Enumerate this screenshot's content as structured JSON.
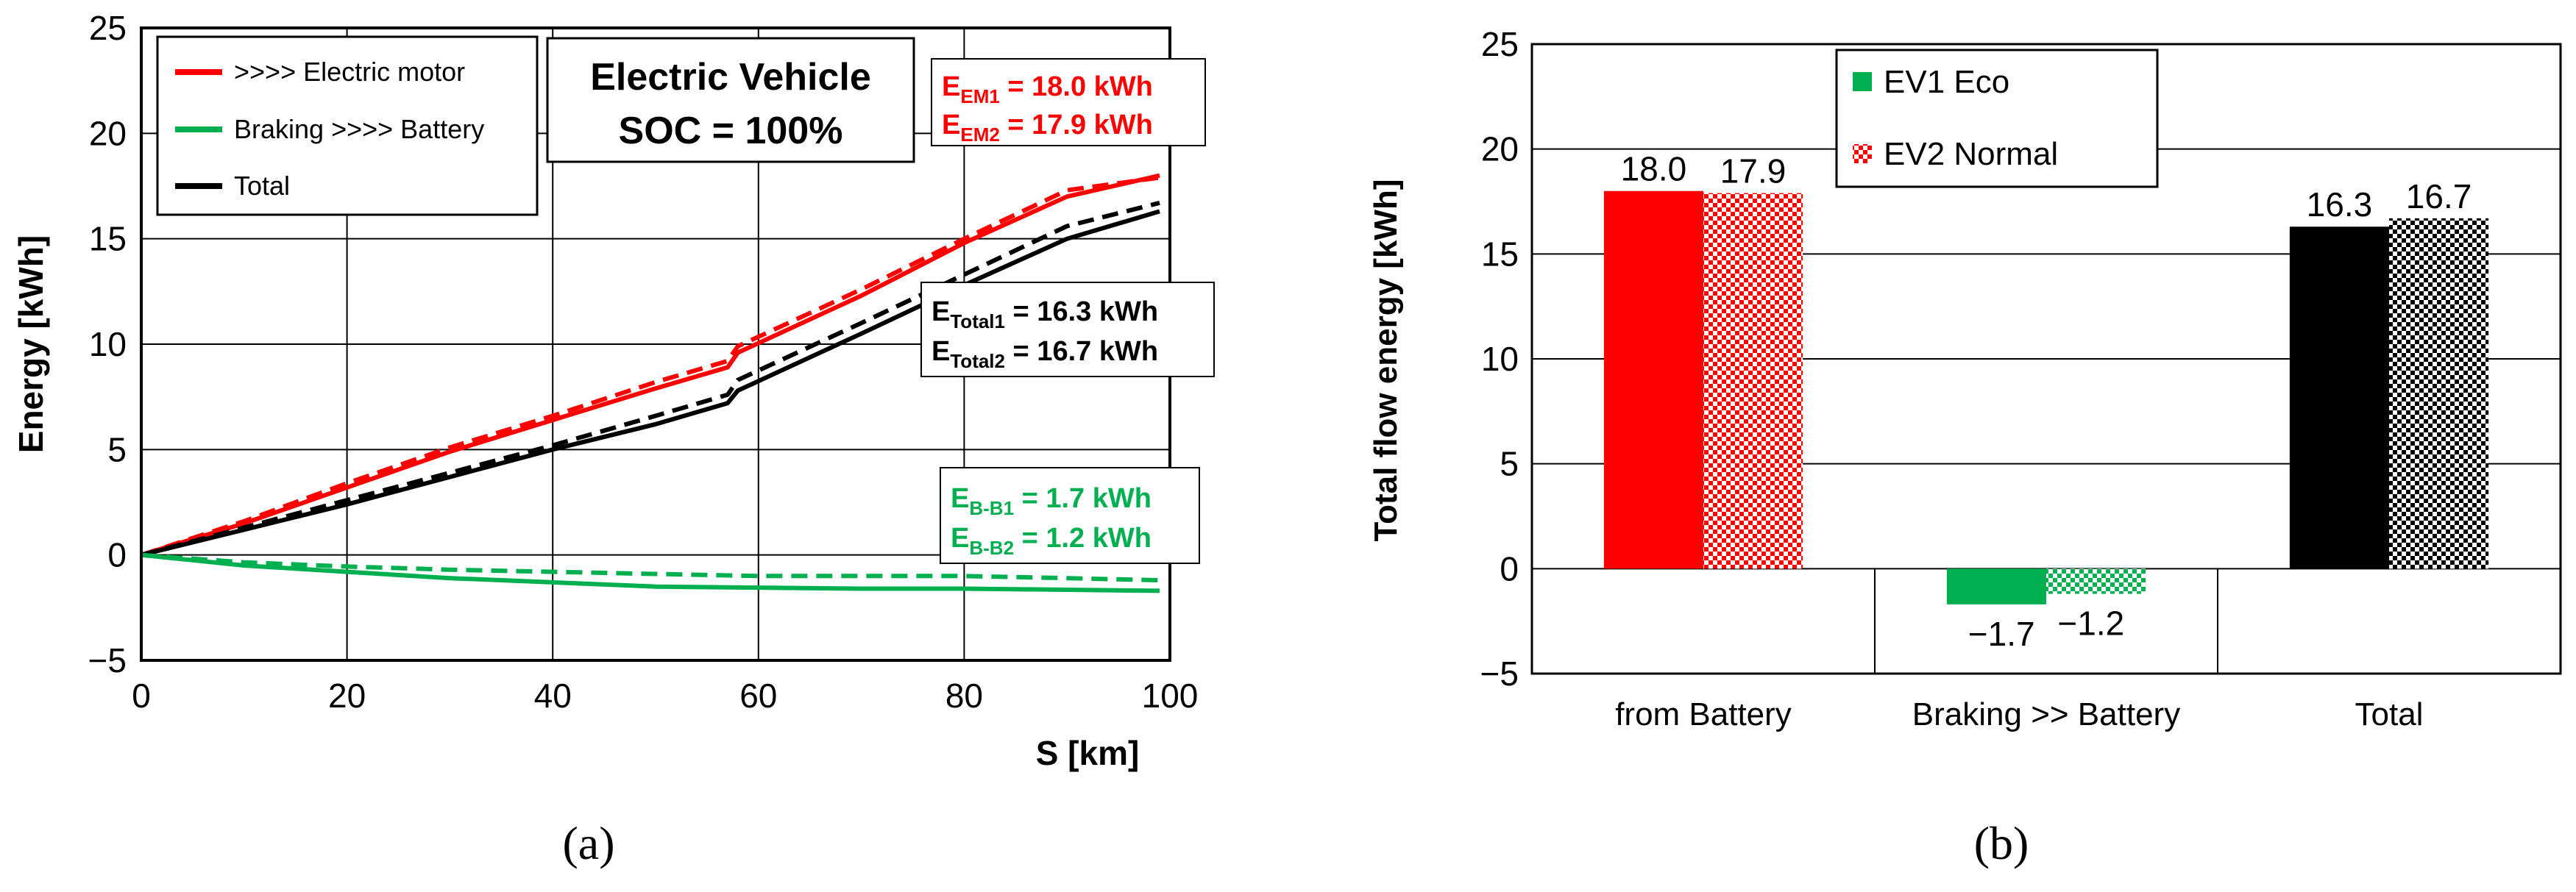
{
  "chart_data": [
    {
      "type": "line",
      "panel_label": "(a)",
      "xlabel": "S [km]",
      "ylabel": "Energy [kWh]",
      "xlim": [
        0,
        100
      ],
      "ylim": [
        -5,
        25
      ],
      "x_ticks": [
        0,
        20,
        40,
        60,
        80,
        100
      ],
      "y_ticks": [
        -5,
        0,
        5,
        10,
        15,
        20,
        25
      ],
      "grid": true,
      "title_box": {
        "line1": "Electric Vehicle",
        "line2": "SOC = 100%"
      },
      "legend": [
        {
          "label": ">>>> Electric motor",
          "color": "#ff0000"
        },
        {
          "label": "Braking >>>> Battery",
          "color": "#00b050"
        },
        {
          "label": "Total",
          "color": "#000000"
        }
      ],
      "series": [
        {
          "name": "EM1 (Eco)",
          "color": "#ff0000",
          "dash": false,
          "x": [
            0,
            10,
            20,
            30,
            40,
            50,
            57,
            58,
            70,
            80,
            90,
            99
          ],
          "y": [
            0,
            1.5,
            3.2,
            4.9,
            6.4,
            7.9,
            8.9,
            9.6,
            12.3,
            14.8,
            17.0,
            18.0
          ]
        },
        {
          "name": "EM2 (Normal)",
          "color": "#ff0000",
          "dash": true,
          "x": [
            0,
            10,
            20,
            30,
            40,
            50,
            57,
            58,
            70,
            80,
            90,
            99
          ],
          "y": [
            0,
            1.6,
            3.4,
            5.1,
            6.6,
            8.2,
            9.2,
            9.9,
            12.6,
            15.0,
            17.3,
            17.9
          ]
        },
        {
          "name": "Total1 (Eco)",
          "color": "#000000",
          "dash": false,
          "x": [
            0,
            10,
            20,
            30,
            40,
            50,
            57,
            58,
            70,
            80,
            90,
            99
          ],
          "y": [
            0,
            1.2,
            2.4,
            3.7,
            5.0,
            6.2,
            7.2,
            7.8,
            10.5,
            12.8,
            15.0,
            16.3
          ]
        },
        {
          "name": "Total2 (Normal)",
          "color": "#000000",
          "dash": true,
          "x": [
            0,
            10,
            20,
            30,
            40,
            50,
            57,
            58,
            70,
            80,
            90,
            99
          ],
          "y": [
            0,
            1.3,
            2.6,
            3.9,
            5.2,
            6.6,
            7.6,
            8.3,
            11.0,
            13.3,
            15.6,
            16.7
          ]
        },
        {
          "name": "B-B1 (Eco)",
          "color": "#00b050",
          "dash": false,
          "x": [
            0,
            10,
            20,
            30,
            40,
            50,
            60,
            70,
            80,
            90,
            99
          ],
          "y": [
            0,
            -0.5,
            -0.8,
            -1.1,
            -1.3,
            -1.5,
            -1.55,
            -1.6,
            -1.6,
            -1.65,
            -1.7
          ]
        },
        {
          "name": "B-B2 (Normal)",
          "color": "#00b050",
          "dash": true,
          "x": [
            0,
            10,
            20,
            30,
            40,
            50,
            60,
            70,
            80,
            90,
            99
          ],
          "y": [
            0,
            -0.35,
            -0.55,
            -0.7,
            -0.8,
            -0.9,
            -1.0,
            -1.0,
            -1.0,
            -1.1,
            -1.2
          ]
        }
      ],
      "annotations": {
        "em": {
          "color": "#ff0000",
          "line1": {
            "main": "E",
            "sub": "EM1",
            "rest": " = 18.0 kWh"
          },
          "line2": {
            "main": "E",
            "sub": "EM2",
            "rest": " = 17.9 kWh"
          }
        },
        "total": {
          "color": "#000000",
          "line1": {
            "main": "E",
            "sub": "Total1",
            "rest": " = 16.3 kWh"
          },
          "line2": {
            "main": "E",
            "sub": "Total2",
            "rest": " = 16.7 kWh"
          }
        },
        "bb": {
          "color": "#00b050",
          "line1": {
            "main": "E",
            "sub": "B-B1",
            "rest": " = 1.7 kWh"
          },
          "line2": {
            "main": "E",
            "sub": "B-B2",
            "rest": " = 1.2 kWh"
          }
        }
      }
    },
    {
      "type": "bar",
      "panel_label": "(b)",
      "ylabel": "Total flow energy [kWh]",
      "ylim": [
        -5,
        25
      ],
      "y_ticks": [
        -5,
        0,
        5,
        10,
        15,
        20,
        25
      ],
      "categories": [
        "from Battery",
        "Braking >> Battery",
        "Total"
      ],
      "series": [
        {
          "name": "EV1 Eco",
          "values": [
            18.0,
            -1.7,
            16.3
          ],
          "labels": [
            "18.0",
            "−1.7",
            "16.3"
          ]
        },
        {
          "name": "EV2 Normal",
          "values": [
            17.9,
            -1.2,
            16.7
          ],
          "labels": [
            "17.9",
            "−1.2",
            "16.7"
          ]
        }
      ],
      "category_colors": [
        "#ff0000",
        "#00b050",
        "#000000"
      ]
    }
  ]
}
